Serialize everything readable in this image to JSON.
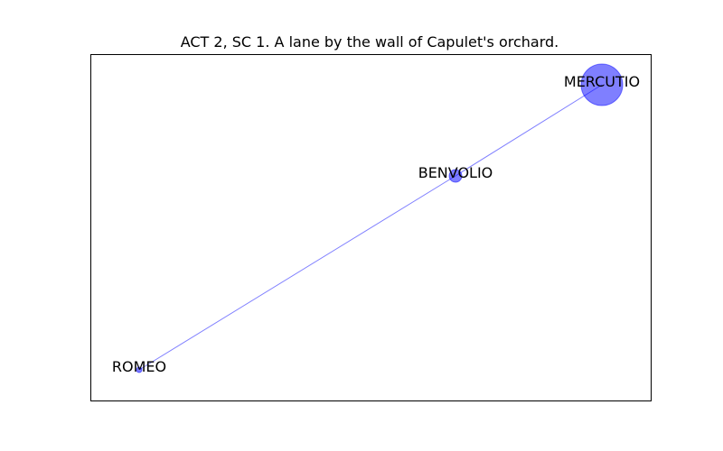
{
  "title": "ACT 2, SC 1. A lane by the wall of Capulet's orchard.",
  "colors": {
    "node": "#0000ff",
    "edge": "#0000ff",
    "frame": "#000000"
  },
  "nodes": [
    {
      "id": "romeo",
      "label": "ROMEO",
      "size": 1
    },
    {
      "id": "benvolio",
      "label": "BENVOLIO",
      "size": 3
    },
    {
      "id": "mercutio",
      "label": "MERCUTIO",
      "size": 10
    }
  ],
  "edges": [
    {
      "source": "romeo",
      "target": "benvolio"
    },
    {
      "source": "benvolio",
      "target": "mercutio"
    }
  ]
}
